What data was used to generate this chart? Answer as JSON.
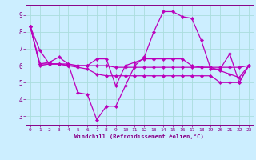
{
  "bg_color": "#cceeff",
  "grid_color": "#aadddd",
  "line_color": "#bb00bb",
  "spine_color": "#880088",
  "tick_color": "#880088",
  "label_color": "#880088",
  "marker": "D",
  "marker_size": 2.2,
  "linewidth": 0.9,
  "xlim": [
    -0.5,
    23.5
  ],
  "ylim": [
    2.5,
    9.6
  ],
  "yticks": [
    3,
    4,
    5,
    6,
    7,
    8,
    9
  ],
  "xticks": [
    0,
    1,
    2,
    3,
    4,
    5,
    6,
    7,
    8,
    9,
    10,
    11,
    12,
    13,
    14,
    15,
    16,
    17,
    18,
    19,
    20,
    21,
    22,
    23
  ],
  "xlabel": "Windchill (Refroidissement éolien,°C)",
  "series": [
    [
      8.3,
      6.9,
      6.1,
      6.1,
      6.1,
      4.4,
      4.3,
      2.8,
      3.6,
      3.6,
      4.8,
      6.0,
      6.5,
      8.0,
      9.2,
      9.2,
      8.9,
      8.8,
      7.5,
      5.8,
      5.8,
      6.7,
      5.0,
      6.0
    ],
    [
      8.3,
      6.1,
      6.2,
      6.5,
      6.1,
      6.0,
      6.0,
      6.4,
      6.4,
      4.8,
      6.0,
      6.2,
      6.4,
      6.4,
      6.4,
      6.4,
      6.4,
      6.0,
      5.9,
      5.9,
      5.9,
      5.9,
      5.9,
      6.0
    ],
    [
      8.3,
      6.1,
      6.1,
      6.1,
      6.0,
      6.0,
      6.0,
      6.0,
      6.0,
      5.9,
      5.9,
      5.9,
      5.9,
      5.9,
      5.9,
      5.9,
      5.9,
      5.9,
      5.9,
      5.9,
      5.7,
      5.5,
      5.3,
      6.0
    ],
    [
      8.3,
      6.0,
      6.1,
      6.1,
      6.0,
      5.9,
      5.8,
      5.5,
      5.4,
      5.4,
      5.4,
      5.4,
      5.4,
      5.4,
      5.4,
      5.4,
      5.4,
      5.4,
      5.4,
      5.4,
      5.0,
      5.0,
      5.0,
      6.0
    ]
  ]
}
